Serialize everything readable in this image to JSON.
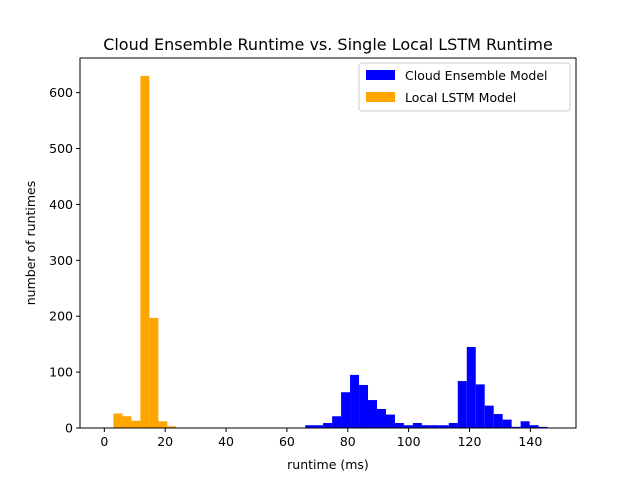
{
  "chart_data": {
    "type": "bar",
    "title": "Cloud Ensemble Runtime vs. Single Local LSTM Runtime",
    "xlabel": "runtime (ms)",
    "ylabel": "number of runtimes",
    "xlim": [
      -8,
      155
    ],
    "ylim": [
      0,
      662
    ],
    "xticks": [
      0,
      20,
      40,
      60,
      80,
      100,
      120,
      140
    ],
    "yticks": [
      0,
      100,
      200,
      300,
      400,
      500,
      600
    ],
    "grid": false,
    "legend_position": "upper-right",
    "series": [
      {
        "name": "Cloud Ensemble Model",
        "color": "#0000ff",
        "bin_width": 2.95,
        "bins": [
          {
            "x0": 66.0,
            "count": 5
          },
          {
            "x0": 68.95,
            "count": 5
          },
          {
            "x0": 71.9,
            "count": 9
          },
          {
            "x0": 74.85,
            "count": 21
          },
          {
            "x0": 77.8,
            "count": 64
          },
          {
            "x0": 80.75,
            "count": 95
          },
          {
            "x0": 83.7,
            "count": 77
          },
          {
            "x0": 86.65,
            "count": 50
          },
          {
            "x0": 89.6,
            "count": 34
          },
          {
            "x0": 92.55,
            "count": 24
          },
          {
            "x0": 95.5,
            "count": 9
          },
          {
            "x0": 98.45,
            "count": 5
          },
          {
            "x0": 101.4,
            "count": 9
          },
          {
            "x0": 104.35,
            "count": 5
          },
          {
            "x0": 107.3,
            "count": 5
          },
          {
            "x0": 110.25,
            "count": 5
          },
          {
            "x0": 113.2,
            "count": 9
          },
          {
            "x0": 116.15,
            "count": 84
          },
          {
            "x0": 119.1,
            "count": 145
          },
          {
            "x0": 122.05,
            "count": 78
          },
          {
            "x0": 125.0,
            "count": 40
          },
          {
            "x0": 127.95,
            "count": 25
          },
          {
            "x0": 130.9,
            "count": 15
          },
          {
            "x0": 133.85,
            "count": 2
          },
          {
            "x0": 136.8,
            "count": 12
          },
          {
            "x0": 139.75,
            "count": 5
          },
          {
            "x0": 142.7,
            "count": 2
          }
        ]
      },
      {
        "name": "Local LSTM Model",
        "color": "#ffa500",
        "bin_width": 2.95,
        "bins": [
          {
            "x0": 3.0,
            "count": 26
          },
          {
            "x0": 5.95,
            "count": 21
          },
          {
            "x0": 8.9,
            "count": 13
          },
          {
            "x0": 11.85,
            "count": 630
          },
          {
            "x0": 14.8,
            "count": 197
          },
          {
            "x0": 17.75,
            "count": 12
          },
          {
            "x0": 20.7,
            "count": 3
          },
          {
            "x0": 32.5,
            "count": 1
          }
        ]
      }
    ]
  }
}
